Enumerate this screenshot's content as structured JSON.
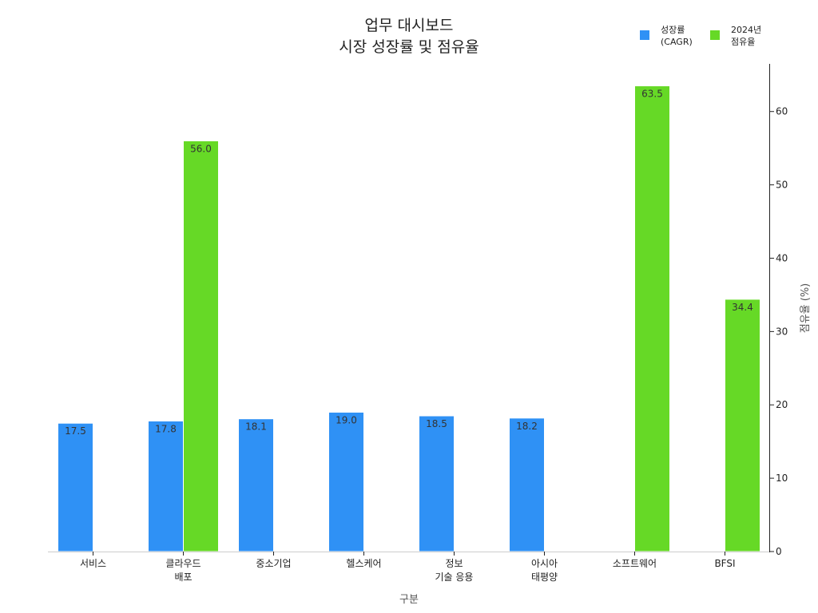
{
  "chart_data": {
    "type": "bar",
    "title": [
      "업무 대시보드",
      "시장 성장률 및 점유율"
    ],
    "categories": [
      [
        "서비스"
      ],
      [
        "클라우드",
        "배포"
      ],
      [
        "중소기업"
      ],
      [
        "헬스케어"
      ],
      [
        "정보",
        "기술 응용"
      ],
      [
        "아시아",
        "태평양"
      ],
      [
        "소프트웨어"
      ],
      [
        "BFSI"
      ]
    ],
    "xlabel": "구분",
    "ylabel": "점유율 (%)",
    "ylim": [
      0,
      66.5
    ],
    "yticks": [
      "0",
      "10",
      "20",
      "30",
      "40",
      "50",
      "60"
    ],
    "ytick_values": [
      0,
      10,
      20,
      30,
      40,
      50,
      60
    ],
    "y_axis_side": "right",
    "grid": false,
    "legend_position": "top-right",
    "series": [
      {
        "name": [
          "성장률",
          "(CAGR)"
        ],
        "color": "#2f91f5",
        "values": [
          17.5,
          17.8,
          18.1,
          19.0,
          18.5,
          18.2,
          null,
          null
        ],
        "labels": [
          "17.5",
          "17.8",
          "18.1",
          "19.0",
          "18.5",
          "18.2",
          null,
          null
        ]
      },
      {
        "name": [
          "2024년",
          "점유율"
        ],
        "color": "#66d926",
        "values": [
          null,
          56.0,
          null,
          null,
          null,
          null,
          63.5,
          34.4
        ],
        "labels": [
          null,
          "56.0",
          null,
          null,
          null,
          null,
          "63.5",
          "34.4"
        ]
      }
    ]
  }
}
